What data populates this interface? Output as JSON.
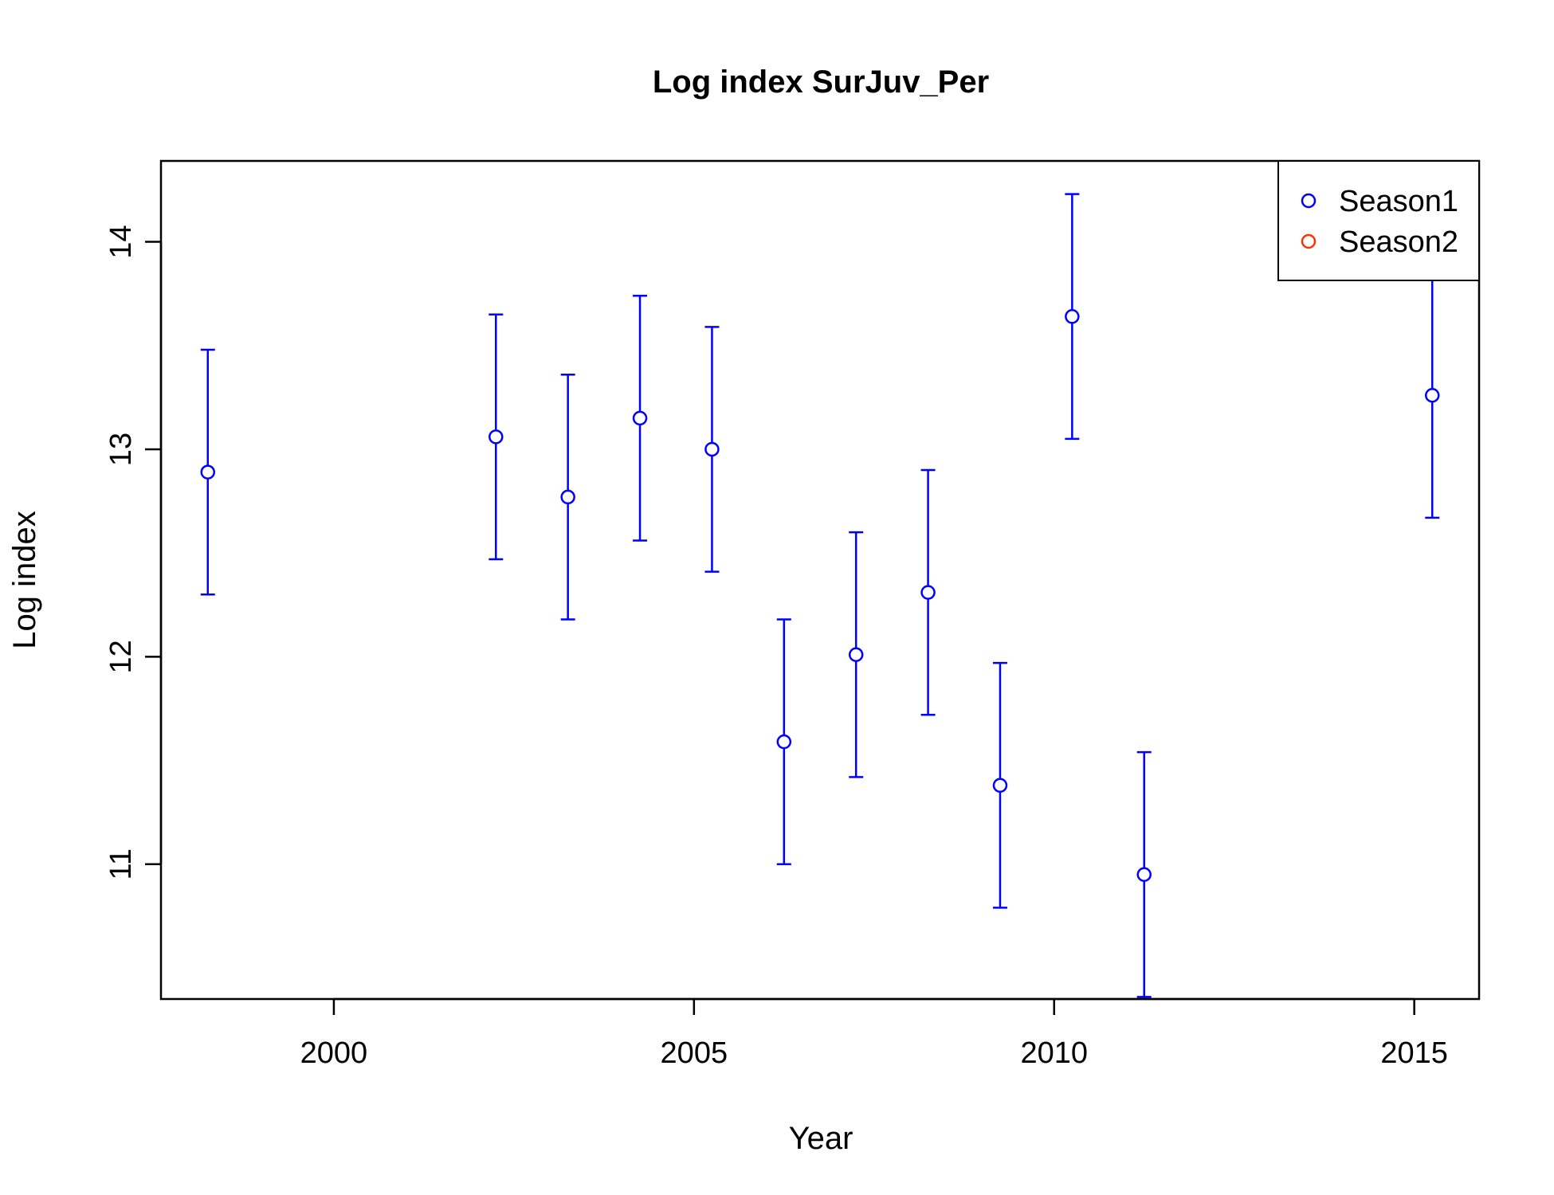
{
  "chart_data": {
    "type": "scatter",
    "title": "Log index SurJuv_Per",
    "xlabel": "Year",
    "ylabel": "Log index",
    "xlim": [
      1997.6,
      2015.9
    ],
    "ylim": [
      10.35,
      14.39
    ],
    "x_ticks": [
      2000,
      2005,
      2010,
      2015
    ],
    "y_ticks": [
      11,
      12,
      13,
      14
    ],
    "grid": false,
    "legend_position": "top-right",
    "colors": {
      "Season1": "#0000ff",
      "Season2": "#ff3300"
    },
    "legend": [
      {
        "name": "Season1",
        "color": "#0000ff"
      },
      {
        "name": "Season2",
        "color": "#ff3300"
      }
    ],
    "series": [
      {
        "name": "Season1",
        "color": "#0000ff",
        "points": [
          {
            "x": 1998.25,
            "y": 12.89,
            "lower": 12.3,
            "upper": 13.48
          },
          {
            "x": 2002.25,
            "y": 13.06,
            "lower": 12.47,
            "upper": 13.65
          },
          {
            "x": 2003.25,
            "y": 12.77,
            "lower": 12.18,
            "upper": 13.36
          },
          {
            "x": 2004.25,
            "y": 13.15,
            "lower": 12.56,
            "upper": 13.74
          },
          {
            "x": 2005.25,
            "y": 13.0,
            "lower": 12.41,
            "upper": 13.59
          },
          {
            "x": 2006.25,
            "y": 11.59,
            "lower": 11.0,
            "upper": 12.18
          },
          {
            "x": 2007.25,
            "y": 12.01,
            "lower": 11.42,
            "upper": 12.6
          },
          {
            "x": 2008.25,
            "y": 12.31,
            "lower": 11.72,
            "upper": 12.9
          },
          {
            "x": 2009.25,
            "y": 11.38,
            "lower": 10.79,
            "upper": 11.97
          },
          {
            "x": 2010.25,
            "y": 13.64,
            "lower": 13.05,
            "upper": 14.23
          },
          {
            "x": 2011.25,
            "y": 10.95,
            "lower": 10.36,
            "upper": 11.54
          },
          {
            "x": 2015.25,
            "y": 13.26,
            "lower": 12.67,
            "upper": 13.85
          }
        ]
      },
      {
        "name": "Season2",
        "color": "#ff3300",
        "points": []
      }
    ]
  }
}
